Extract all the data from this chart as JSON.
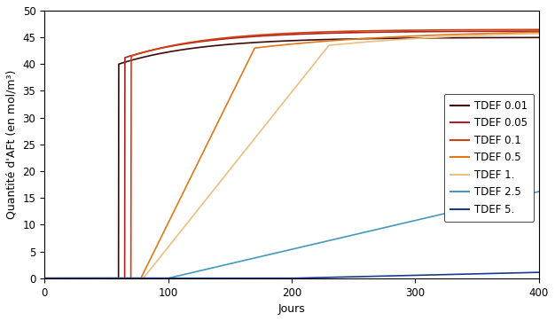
{
  "title": "",
  "xlabel": "Jours",
  "ylabel": "Quantité d'AFt (en mol/m³)",
  "xlim": [
    0,
    400
  ],
  "ylim": [
    0,
    50
  ],
  "xticks": [
    0,
    100,
    200,
    300,
    400
  ],
  "yticks": [
    0,
    5,
    10,
    15,
    20,
    25,
    30,
    35,
    40,
    45,
    50
  ],
  "series": [
    {
      "label": "TDEF 0.01",
      "color": "#3d0a0a",
      "linewidth": 1.2,
      "type": "step_plateau",
      "start_day": 60,
      "initial_plateau": 40.0,
      "final_val": 45.0,
      "rise_rate": 80.0,
      "slow_rate": 0.015
    },
    {
      "label": "TDEF 0.05",
      "color": "#b02020",
      "linewidth": 1.2,
      "type": "step_plateau",
      "start_day": 65,
      "initial_plateau": 41.2,
      "final_val": 46.2,
      "rise_rate": 50.0,
      "slow_rate": 0.015
    },
    {
      "label": "TDEF 0.1",
      "color": "#d04010",
      "linewidth": 1.2,
      "type": "step_plateau",
      "start_day": 70,
      "initial_plateau": 41.5,
      "final_val": 46.5,
      "rise_rate": 25.0,
      "slow_rate": 0.015
    },
    {
      "label": "TDEF 0.5",
      "color": "#e07818",
      "linewidth": 1.2,
      "type": "linear",
      "start_day": 78,
      "end_day": 170,
      "start_val": 0.0,
      "end_val": 43.0,
      "final_val": 46.5
    },
    {
      "label": "TDEF 1.",
      "color": "#e8c080",
      "linewidth": 1.2,
      "type": "linear",
      "start_day": 80,
      "end_day": 230,
      "start_val": 0.0,
      "end_val": 43.5,
      "final_val": 46.5
    },
    {
      "label": "TDEF 2.5",
      "color": "#4499bb",
      "linewidth": 1.2,
      "type": "linear_simple",
      "start_day": 100,
      "end_day": 400,
      "start_val": 0.0,
      "end_val": 16.2
    },
    {
      "label": "TDEF 5.",
      "color": "#1a3a8a",
      "linewidth": 1.2,
      "type": "linear_simple",
      "start_day": 200,
      "end_day": 400,
      "start_val": 0.0,
      "end_val": 1.1
    }
  ],
  "background_color": "#ffffff",
  "legend_fontsize": 8.5,
  "axis_fontsize": 9,
  "figsize": [
    6.26,
    3.62
  ],
  "dpi": 100
}
